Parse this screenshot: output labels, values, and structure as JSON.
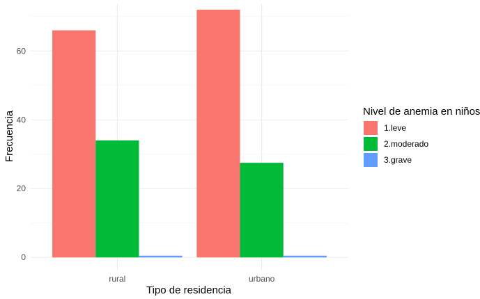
{
  "chart_data": {
    "type": "bar",
    "xlabel": "Tipo de residencia",
    "ylabel": "Frecuencia",
    "categories": [
      "rural",
      "urbano"
    ],
    "series": [
      {
        "name": "1.leve",
        "color": "#F8766D",
        "values": [
          66,
          72
        ]
      },
      {
        "name": "2.moderado",
        "color": "#00BA38",
        "values": [
          34,
          27.5
        ]
      },
      {
        "name": "3.grave",
        "color": "#619CFF",
        "values": [
          0.5,
          0.5
        ]
      }
    ],
    "ylim": [
      -3.6,
      73.6
    ],
    "yticks": [
      0,
      20,
      40,
      60
    ],
    "grid": true,
    "legend": {
      "title": "Nivel de anemia en niños",
      "placement": "right"
    }
  }
}
